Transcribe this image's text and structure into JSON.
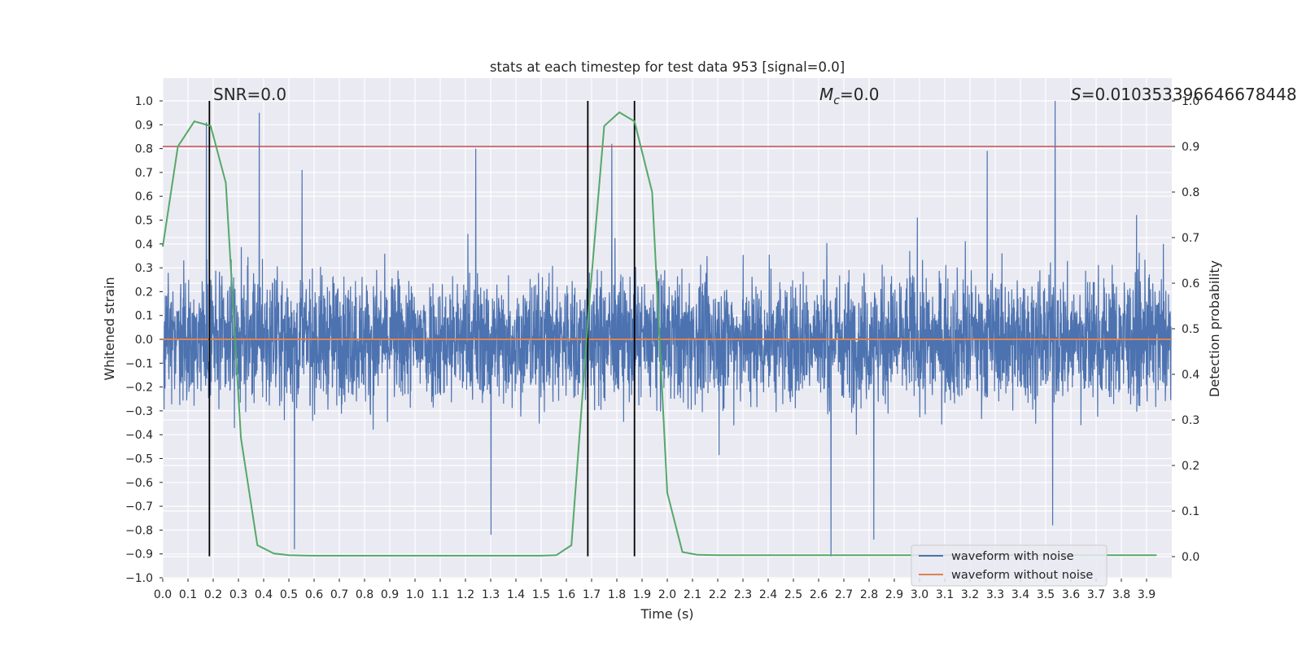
{
  "chart_data": {
    "type": "line",
    "title": "stats at each timestep for test data 953 [signal=0.0]",
    "xlabel": "Time (s)",
    "ylabel": "Whitened strain",
    "y2label": "Detection probability",
    "xlim": [
      0.0,
      4.0
    ],
    "ylim": [
      -1.0,
      1.0
    ],
    "y2lim": [
      -0.045,
      1.0
    ],
    "x_ticks": [
      "0.0",
      "0.1",
      "0.2",
      "0.3",
      "0.4",
      "0.5",
      "0.6",
      "0.7",
      "0.8",
      "0.9",
      "1.0",
      "1.1",
      "1.2",
      "1.3",
      "1.4",
      "1.5",
      "1.6",
      "1.7",
      "1.8",
      "1.9",
      "2.0",
      "2.1",
      "2.2",
      "2.3",
      "2.4",
      "2.5",
      "2.6",
      "2.7",
      "2.8",
      "2.9",
      "3.0",
      "3.1",
      "3.2",
      "3.3",
      "3.4",
      "3.5",
      "3.6",
      "3.7",
      "3.8",
      "3.9"
    ],
    "y_ticks": [
      "1.0",
      "0.9",
      "0.8",
      "0.7",
      "0.6",
      "0.5",
      "0.4",
      "0.3",
      "0.2",
      "0.1",
      "0.0",
      "-0.1",
      "-0.2",
      "-0.3",
      "-0.4",
      "-0.5",
      "-0.6",
      "-0.7",
      "-0.8",
      "-0.9",
      "-1.0"
    ],
    "y2_ticks": [
      "1.0",
      "0.9",
      "0.8",
      "0.7",
      "0.6",
      "0.5",
      "0.4",
      "0.3",
      "0.2",
      "0.1",
      "0.0"
    ],
    "noise_trace": {
      "name": "waveform with noise",
      "color": "#4c72b0",
      "x_range": [
        0.0,
        4.0
      ],
      "typical_amplitude": 0.35,
      "max": 1.0,
      "min": -0.91,
      "spikes": [
        [
          0.17,
          0.91
        ],
        [
          0.38,
          0.95
        ],
        [
          0.55,
          0.71
        ],
        [
          1.24,
          0.8
        ],
        [
          1.78,
          0.82
        ],
        [
          3.27,
          0.79
        ],
        [
          3.54,
          1.0
        ],
        [
          0.52,
          -0.88
        ],
        [
          1.3,
          -0.82
        ],
        [
          2.65,
          -0.91
        ],
        [
          2.82,
          -0.84
        ],
        [
          3.53,
          -0.78
        ]
      ]
    },
    "clean_trace": {
      "name": "waveform without noise",
      "color": "#dd8452",
      "value": 0.0
    },
    "detection_probability": {
      "color": "#55a868",
      "x": [
        0.0,
        0.06,
        0.125,
        0.19,
        0.25,
        0.31,
        0.375,
        0.44,
        0.5,
        0.6,
        0.8,
        1.0,
        1.2,
        1.4,
        1.5,
        1.56,
        1.62,
        1.69,
        1.75,
        1.81,
        1.87,
        1.94,
        2.0,
        2.06,
        2.12,
        2.2,
        2.4,
        2.8,
        3.2,
        3.6,
        3.94
      ],
      "y": [
        0.68,
        0.9,
        0.955,
        0.945,
        0.82,
        0.26,
        0.025,
        0.007,
        0.003,
        0.002,
        0.002,
        0.002,
        0.002,
        0.002,
        0.002,
        0.003,
        0.025,
        0.55,
        0.945,
        0.975,
        0.955,
        0.8,
        0.14,
        0.01,
        0.004,
        0.003,
        0.003,
        0.003,
        0.003,
        0.003,
        0.003
      ]
    },
    "threshold": {
      "value": 0.9,
      "axis": "right",
      "color": "#c44e52"
    },
    "event_lines": [
      0.185,
      1.685,
      1.87
    ],
    "event_line_range": [
      -0.91,
      1.0
    ],
    "annotations": {
      "snr": "SNR=0.0",
      "mc_symbol": "M",
      "mc_sub": "c",
      "mc_value": "=0.0",
      "s_symbol": "S",
      "s_value": "=0.010353396646678448"
    },
    "legend": {
      "position": "lower-right",
      "entries": [
        "waveform with noise",
        "waveform without noise"
      ]
    },
    "style": {
      "background": "#eaeaf2",
      "grid": true,
      "grid_color": "#ffffff"
    }
  }
}
